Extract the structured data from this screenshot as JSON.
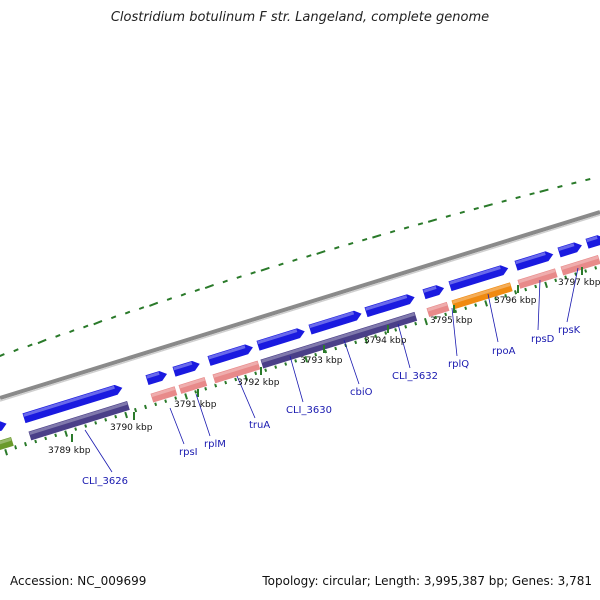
{
  "title": "Clostridium botulinum F str. Langeland, complete genome",
  "footer": {
    "accession": "Accession: NC_009699",
    "topology": "Topology: circular; Length: 3,995,387 bp; Genes: 3,781"
  },
  "colors": {
    "backbone": "#8a8a8a",
    "forward_gene": "#1a1ae0",
    "cds_dark": "#4a3f88",
    "rna_pink": "#e88a8a",
    "orange": "#f08a10",
    "green": "#6a9a2a",
    "tick": "#2a7a2a",
    "label": "#1a1ab0"
  },
  "ticks": [
    {
      "label": "3789 kbp"
    },
    {
      "label": "3790 kbp"
    },
    {
      "label": "3791 kbp"
    },
    {
      "label": "3792 kbp"
    },
    {
      "label": "3793 kbp"
    },
    {
      "label": "3794 kbp"
    },
    {
      "label": "3795 kbp"
    },
    {
      "label": "3796 kbp"
    },
    {
      "label": "3797 kbp"
    }
  ],
  "genes": [
    {
      "label": "CLI_3626"
    },
    {
      "label": "rpsI"
    },
    {
      "label": "rplM"
    },
    {
      "label": "truA"
    },
    {
      "label": "CLI_3630"
    },
    {
      "label": "cbiO"
    },
    {
      "label": "CLI_3632"
    },
    {
      "label": "rplQ"
    },
    {
      "label": "rpoA"
    },
    {
      "label": "rpsD"
    },
    {
      "label": "rpsK"
    }
  ]
}
